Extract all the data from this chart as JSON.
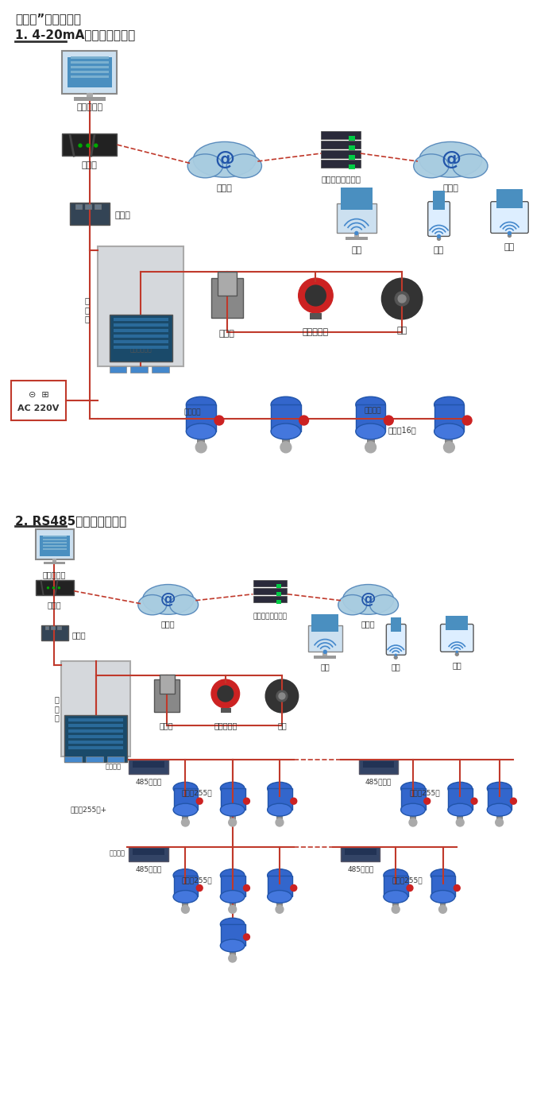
{
  "title1": "机气猫”系列报警器",
  "section1": "1. 4-20mA信号连接系统图",
  "section2": "2. RS485信号连接系统图",
  "bg_color": "#ffffff",
  "red": "#c0392b",
  "figsize": [
    7.0,
    14.07
  ],
  "dpi": 100,
  "labels": {
    "pc": "单机版电脑",
    "router": "路由器",
    "internet": "互联网",
    "server": "安帕尔网络服务器",
    "converter": "转换器",
    "tongxun": "通\n讯\n线",
    "dianci": "电磁阀",
    "shengguang": "声光报警器",
    "fengji": "风机",
    "ac": "AC 220V",
    "diannao": "电脑",
    "shouji": "手机",
    "zhongduan": "终端",
    "xinhao_out": "信号输出",
    "keljie16": "可连接16个",
    "keljie255": "可连接255台",
    "keljie255plus": "可连接255台+",
    "rep485": "485中继器"
  }
}
